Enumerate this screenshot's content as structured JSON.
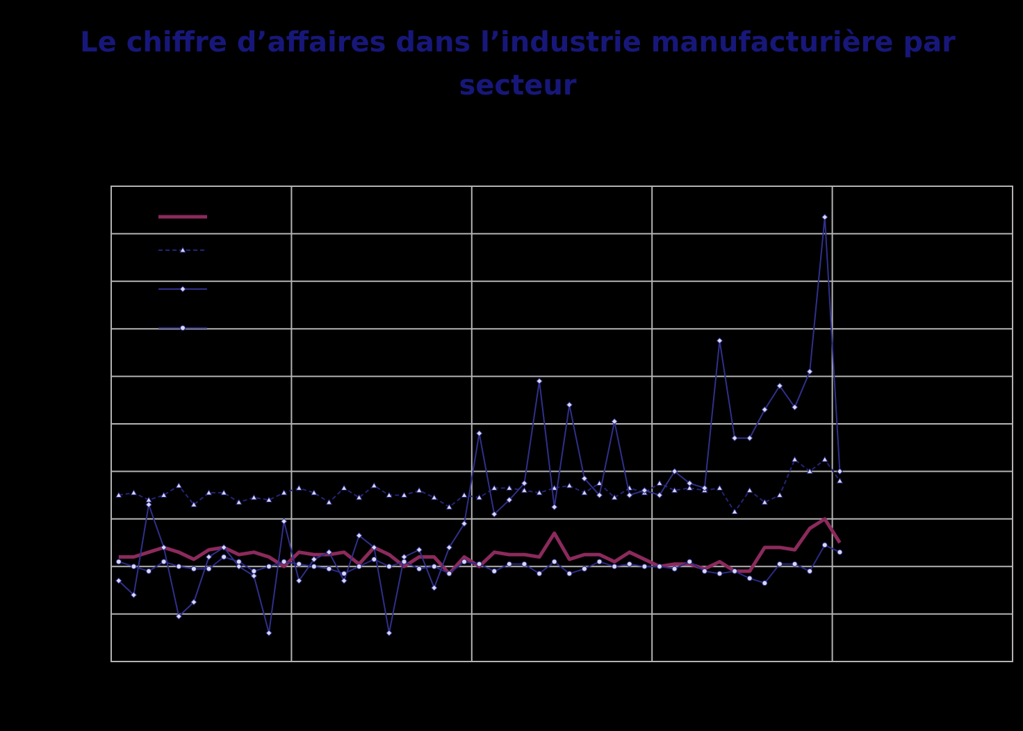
{
  "chart_data": {
    "type": "line",
    "title": "Le chiffre d’affaires dans l’industrie manufacturière par secteur",
    "x": [
      0.5,
      1.5,
      2.5,
      3.5,
      4.5,
      5.5,
      6.5,
      7.5,
      8.5,
      9.5,
      10.5,
      11.5,
      12.5,
      13.5,
      14.5,
      15.5,
      16.5,
      17.5,
      18.5,
      19.5,
      20.5,
      21.5,
      22.5,
      23.5,
      24.5,
      25.5,
      26.5,
      27.5,
      28.5,
      29.5,
      30.5,
      31.5,
      32.5,
      33.5,
      34.5,
      35.5,
      36.5,
      37.5,
      38.5,
      39.5,
      40.5,
      41.5,
      42.5,
      43.5,
      44.5,
      45.5,
      46.5,
      47.5,
      48.5
    ],
    "xlim": [
      0,
      60
    ],
    "xticks": [
      0,
      12,
      24,
      36,
      48,
      60
    ],
    "ylim": [
      80,
      180
    ],
    "yticks": [
      80,
      90,
      100,
      110,
      120,
      130,
      140,
      150,
      160,
      170,
      180
    ],
    "grid": true,
    "series": [
      {
        "color": "#8c2a5c",
        "line_width": 5,
        "marker": "none",
        "dash": false,
        "values": [
          102,
          102,
          103,
          104,
          103,
          101.5,
          103.5,
          104,
          102.5,
          103,
          102,
          100,
          103,
          102.5,
          102.5,
          103,
          100.5,
          104,
          102.5,
          100,
          102,
          102,
          98.5,
          102,
          100,
          103,
          102.5,
          102.5,
          102,
          107,
          101.5,
          102.5,
          102.5,
          101,
          103,
          101.5,
          100,
          100.5,
          100.5,
          99.5,
          101,
          99,
          99,
          104,
          104,
          103.5,
          108,
          110,
          105
        ]
      },
      {
        "color": "#24247a",
        "line_width": 2,
        "marker": "triangle",
        "dash": true,
        "values": [
          115,
          115.5,
          114,
          115,
          117,
          113,
          115.5,
          115.5,
          113.5,
          114.5,
          114,
          115.5,
          116.5,
          115.5,
          113.5,
          116.5,
          114.5,
          117,
          115,
          115,
          116,
          114.5,
          112.5,
          115,
          114.5,
          116.5,
          116.5,
          116,
          115.5,
          116.5,
          117,
          115.5,
          117.5,
          114.5,
          116.5,
          115.5,
          117.5,
          116,
          116.5,
          116,
          116.5,
          111.5,
          116,
          113.5,
          115,
          122.5,
          120,
          122.5,
          118
        ]
      },
      {
        "color": "#30308c",
        "line_width": 2,
        "marker": "diamond",
        "dash": false,
        "values": [
          97,
          94,
          113,
          104,
          89.5,
          92.5,
          102,
          104,
          100,
          98,
          86,
          109.5,
          97,
          101.5,
          103,
          97,
          106.5,
          104,
          86,
          102,
          103.5,
          95.5,
          104,
          109,
          128,
          111,
          114,
          117.5,
          139,
          112.5,
          134,
          118.5,
          115,
          130.5,
          115,
          116,
          115,
          120,
          117.5,
          116.5,
          147.5,
          127,
          127,
          133,
          138,
          133.5,
          141,
          173.5,
          120
        ]
      },
      {
        "color": "#2a2a88",
        "line_width": 2,
        "marker": "circle",
        "dash": false,
        "values": [
          101,
          100,
          99,
          101,
          100,
          99.5,
          99.5,
          102,
          101,
          99,
          100,
          101,
          100.5,
          100,
          99.5,
          98.5,
          100,
          101.5,
          100,
          101,
          99.5,
          100,
          98.5,
          101,
          100.5,
          99,
          100.5,
          100.5,
          98.5,
          101,
          98.5,
          99.5,
          101,
          100,
          100.5,
          100,
          100,
          99.5,
          101,
          99,
          98.5,
          99,
          97.5,
          96.5,
          100.5,
          100.5,
          99,
          104.5,
          103
        ]
      }
    ]
  }
}
